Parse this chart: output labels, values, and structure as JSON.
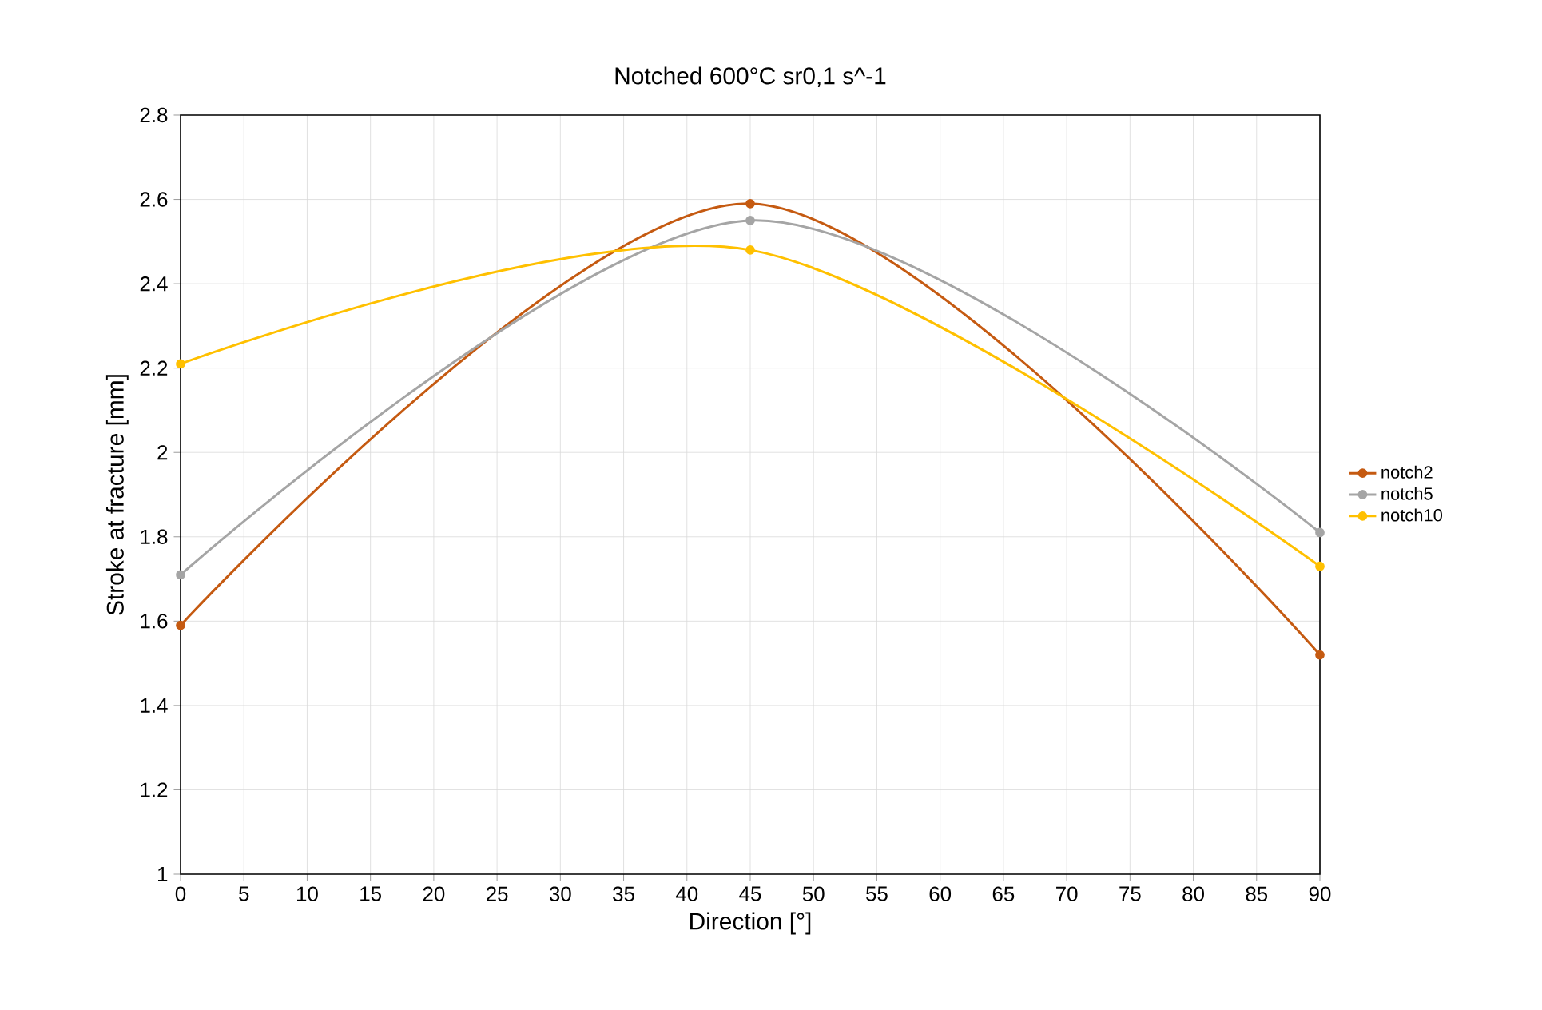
{
  "chart_data": {
    "type": "line",
    "title": "Notched 600°C sr0,1 s^-1",
    "xlabel": "Direction [°]",
    "ylabel": "Stroke at fracture [mm]",
    "x": [
      0,
      45,
      90
    ],
    "series": [
      {
        "name": "notch2",
        "color": "#c55a11",
        "values": [
          1.59,
          2.59,
          1.52
        ]
      },
      {
        "name": "notch5",
        "color": "#a5a5a5",
        "values": [
          1.71,
          2.55,
          1.81
        ]
      },
      {
        "name": "notch10",
        "color": "#ffc000",
        "values": [
          2.21,
          2.48,
          1.73
        ]
      }
    ],
    "xlim": [
      0,
      90
    ],
    "xticks": [
      0,
      5,
      10,
      15,
      20,
      25,
      30,
      35,
      40,
      45,
      50,
      55,
      60,
      65,
      70,
      75,
      80,
      85,
      90
    ],
    "ylim": [
      1,
      2.8
    ],
    "yticks": [
      1,
      1.2,
      1.4,
      1.6,
      1.8,
      2,
      2.2,
      2.4,
      2.6,
      2.8
    ],
    "grid": true,
    "legend": "right",
    "marker": "circle",
    "line_style": "solid"
  }
}
